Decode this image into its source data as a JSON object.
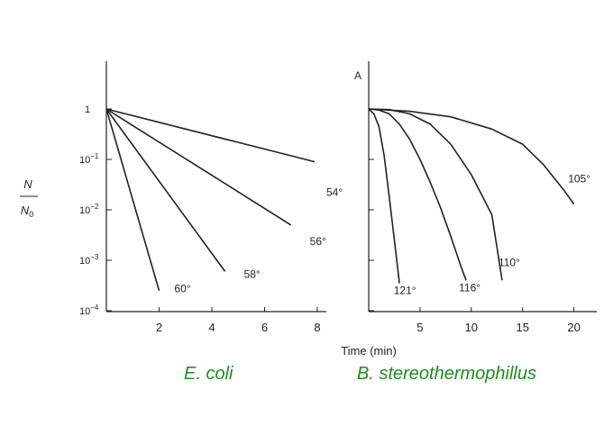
{
  "figure": {
    "y_axis_label_top": "N",
    "y_axis_label_bottom": "N",
    "y_axis_label_bottom_sub": "0",
    "x_axis_label": "Time (min)",
    "panel_letter": "A",
    "captions": {
      "left": "E. coli",
      "right": "B. stereothermophillus"
    },
    "colors": {
      "ink": "#222222",
      "caption": "#1e8c1e",
      "background": "#ffffff"
    }
  },
  "chart_data": [
    {
      "type": "line",
      "title": "E. coli",
      "xlabel": "Time (min)",
      "ylabel": "N/N0",
      "yscale": "log",
      "xlim": [
        0,
        8
      ],
      "ylim": [
        0.0001,
        1
      ],
      "x_ticks": [
        2,
        4,
        6,
        8
      ],
      "y_ticks": [
        {
          "value": 1,
          "base": "1",
          "exp": ""
        },
        {
          "value": 0.1,
          "base": "10",
          "exp": "−1"
        },
        {
          "value": 0.01,
          "base": "10",
          "exp": "−2"
        },
        {
          "value": 0.001,
          "base": "10",
          "exp": "−3"
        },
        {
          "value": 0.0001,
          "base": "10",
          "exp": "−4"
        }
      ],
      "series": [
        {
          "name": "54°",
          "x": [
            0,
            7.9
          ],
          "y": [
            1,
            0.09
          ]
        },
        {
          "name": "56°",
          "x": [
            0,
            7.0
          ],
          "y": [
            1,
            0.005
          ]
        },
        {
          "name": "58°",
          "x": [
            0,
            4.5
          ],
          "y": [
            1,
            0.0006
          ]
        },
        {
          "name": "60°",
          "x": [
            0,
            2.0
          ],
          "y": [
            1,
            0.00025
          ]
        }
      ]
    },
    {
      "type": "line",
      "title": "B. stereothermophillus",
      "xlabel": "Time (min)",
      "ylabel": "N/N0",
      "yscale": "log",
      "xlim": [
        0,
        21
      ],
      "ylim": [
        0.0001,
        1
      ],
      "x_ticks": [
        5,
        10,
        15,
        20
      ],
      "series": [
        {
          "name": "121°",
          "x": [
            0,
            0.5,
            1,
            1.5,
            2,
            2.5,
            3
          ],
          "y": [
            1,
            0.8,
            0.45,
            0.12,
            0.018,
            0.0025,
            0.00035
          ]
        },
        {
          "name": "116°",
          "x": [
            0,
            1,
            2,
            3,
            4,
            5,
            6,
            7,
            8,
            9,
            9.5
          ],
          "y": [
            1,
            0.95,
            0.8,
            0.5,
            0.25,
            0.1,
            0.035,
            0.011,
            0.003,
            0.00075,
            0.0004
          ]
        },
        {
          "name": "110°",
          "x": [
            0,
            2,
            4,
            6,
            8,
            10,
            11,
            12,
            13
          ],
          "y": [
            1,
            0.97,
            0.8,
            0.5,
            0.2,
            0.05,
            0.02,
            0.008,
            0.0004
          ]
        },
        {
          "name": "105°",
          "x": [
            0,
            4,
            8,
            12,
            15,
            17,
            19,
            20
          ],
          "y": [
            1,
            0.9,
            0.7,
            0.4,
            0.2,
            0.08,
            0.025,
            0.013
          ]
        }
      ]
    }
  ]
}
